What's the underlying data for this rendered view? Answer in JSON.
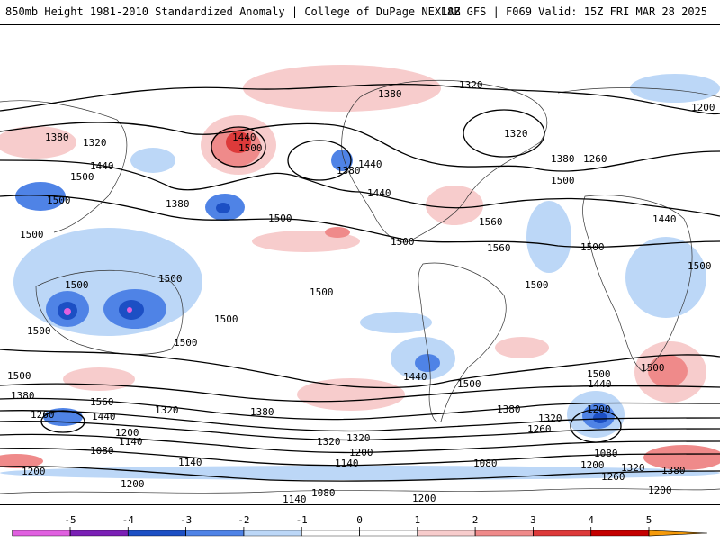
{
  "header": {
    "title": "850mb Height 1981-2010 Standardized Anomaly | College of DuPage NEXLAB",
    "run_info": "18Z GFS | F069 Valid: 15Z FRI MAR 28 2025"
  },
  "map": {
    "projection": "global-cylindrical",
    "contour_labels": [
      "1320",
      "1380",
      "1200",
      "1380",
      "1320",
      "1440",
      "1500",
      "1320",
      "1380",
      "1260",
      "1440",
      "1500",
      "1500",
      "1440",
      "1380",
      "1500",
      "1440",
      "1500",
      "1560",
      "1380",
      "1500",
      "1500",
      "1440",
      "1560",
      "1500",
      "1500",
      "1500",
      "1500",
      "1500",
      "1500",
      "1500",
      "1500",
      "1500",
      "1500",
      "1440",
      "1500",
      "1500",
      "1500",
      "1440",
      "1380",
      "1380",
      "1560",
      "1440",
      "1320",
      "1380",
      "1260",
      "1320",
      "1200",
      "1320",
      "1320",
      "1260",
      "1200",
      "1080",
      "1140",
      "1200",
      "1140",
      "1080",
      "1200",
      "1080",
      "1140",
      "1200",
      "1200",
      "1080",
      "1140",
      "1200",
      "1320",
      "1380",
      "1260",
      "1200"
    ],
    "legend_ticks": [
      "-5",
      "-4",
      "-3",
      "-2",
      "-1",
      "0",
      "1",
      "2",
      "3",
      "4",
      "5"
    ],
    "colors": {
      "n5": "#e060e0",
      "n4": "#7a1fb5",
      "n3": "#1c4fc4",
      "n2": "#4f83e6",
      "n1": "#bcd7f7",
      "zero": "#ffffff",
      "p1": "#f7cccc",
      "p2": "#ef8a8a",
      "p3": "#dd3a3a",
      "p4": "#c40000",
      "p5": "#f59a0a"
    }
  }
}
